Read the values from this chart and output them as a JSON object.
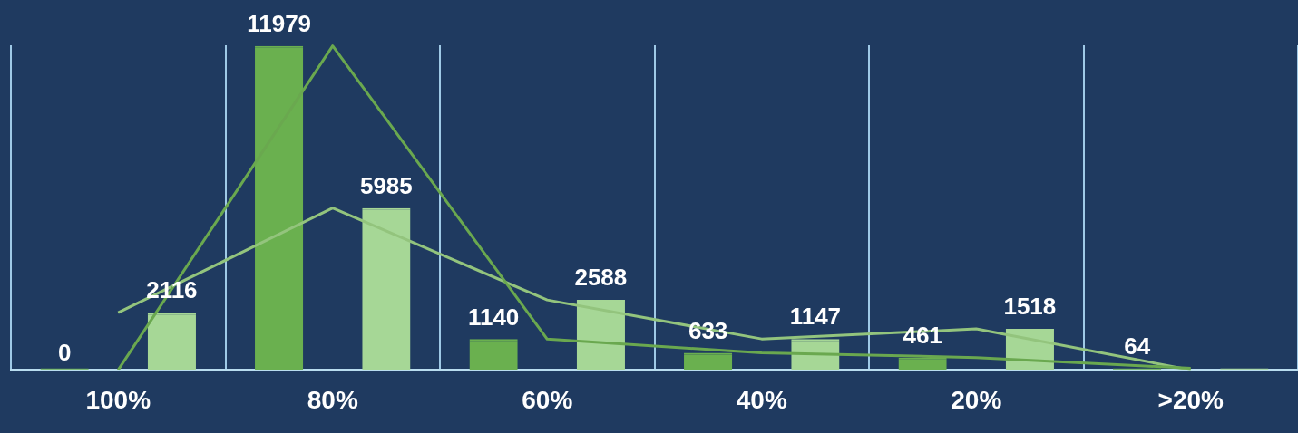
{
  "chart_data": {
    "type": "bar",
    "categories": [
      "100%",
      "80%",
      "60%",
      "40%",
      "20%",
      ">20%"
    ],
    "series": [
      {
        "color": "#6ab04f",
        "values": [
          0,
          11979,
          1140,
          633,
          461,
          64
        ],
        "value_labels": [
          "0",
          "11979",
          "1140",
          "633",
          "461",
          "64"
        ]
      },
      {
        "color": "#a6d796",
        "values": [
          2116,
          5985,
          2588,
          1147,
          1518,
          0
        ],
        "value_labels": [
          "2116",
          "5985",
          "2588",
          "1147",
          "1518",
          null
        ]
      },
      {
        "type": "line",
        "color": "#6aa84f",
        "values": [
          0,
          11979,
          1140,
          633,
          461,
          64
        ]
      },
      {
        "type": "line",
        "color": "#93c47d",
        "values": [
          2116,
          5985,
          2588,
          1147,
          1518,
          0
        ]
      }
    ],
    "grid": "x",
    "legend": false,
    "tick_labels": "x",
    "marker": "none"
  }
}
